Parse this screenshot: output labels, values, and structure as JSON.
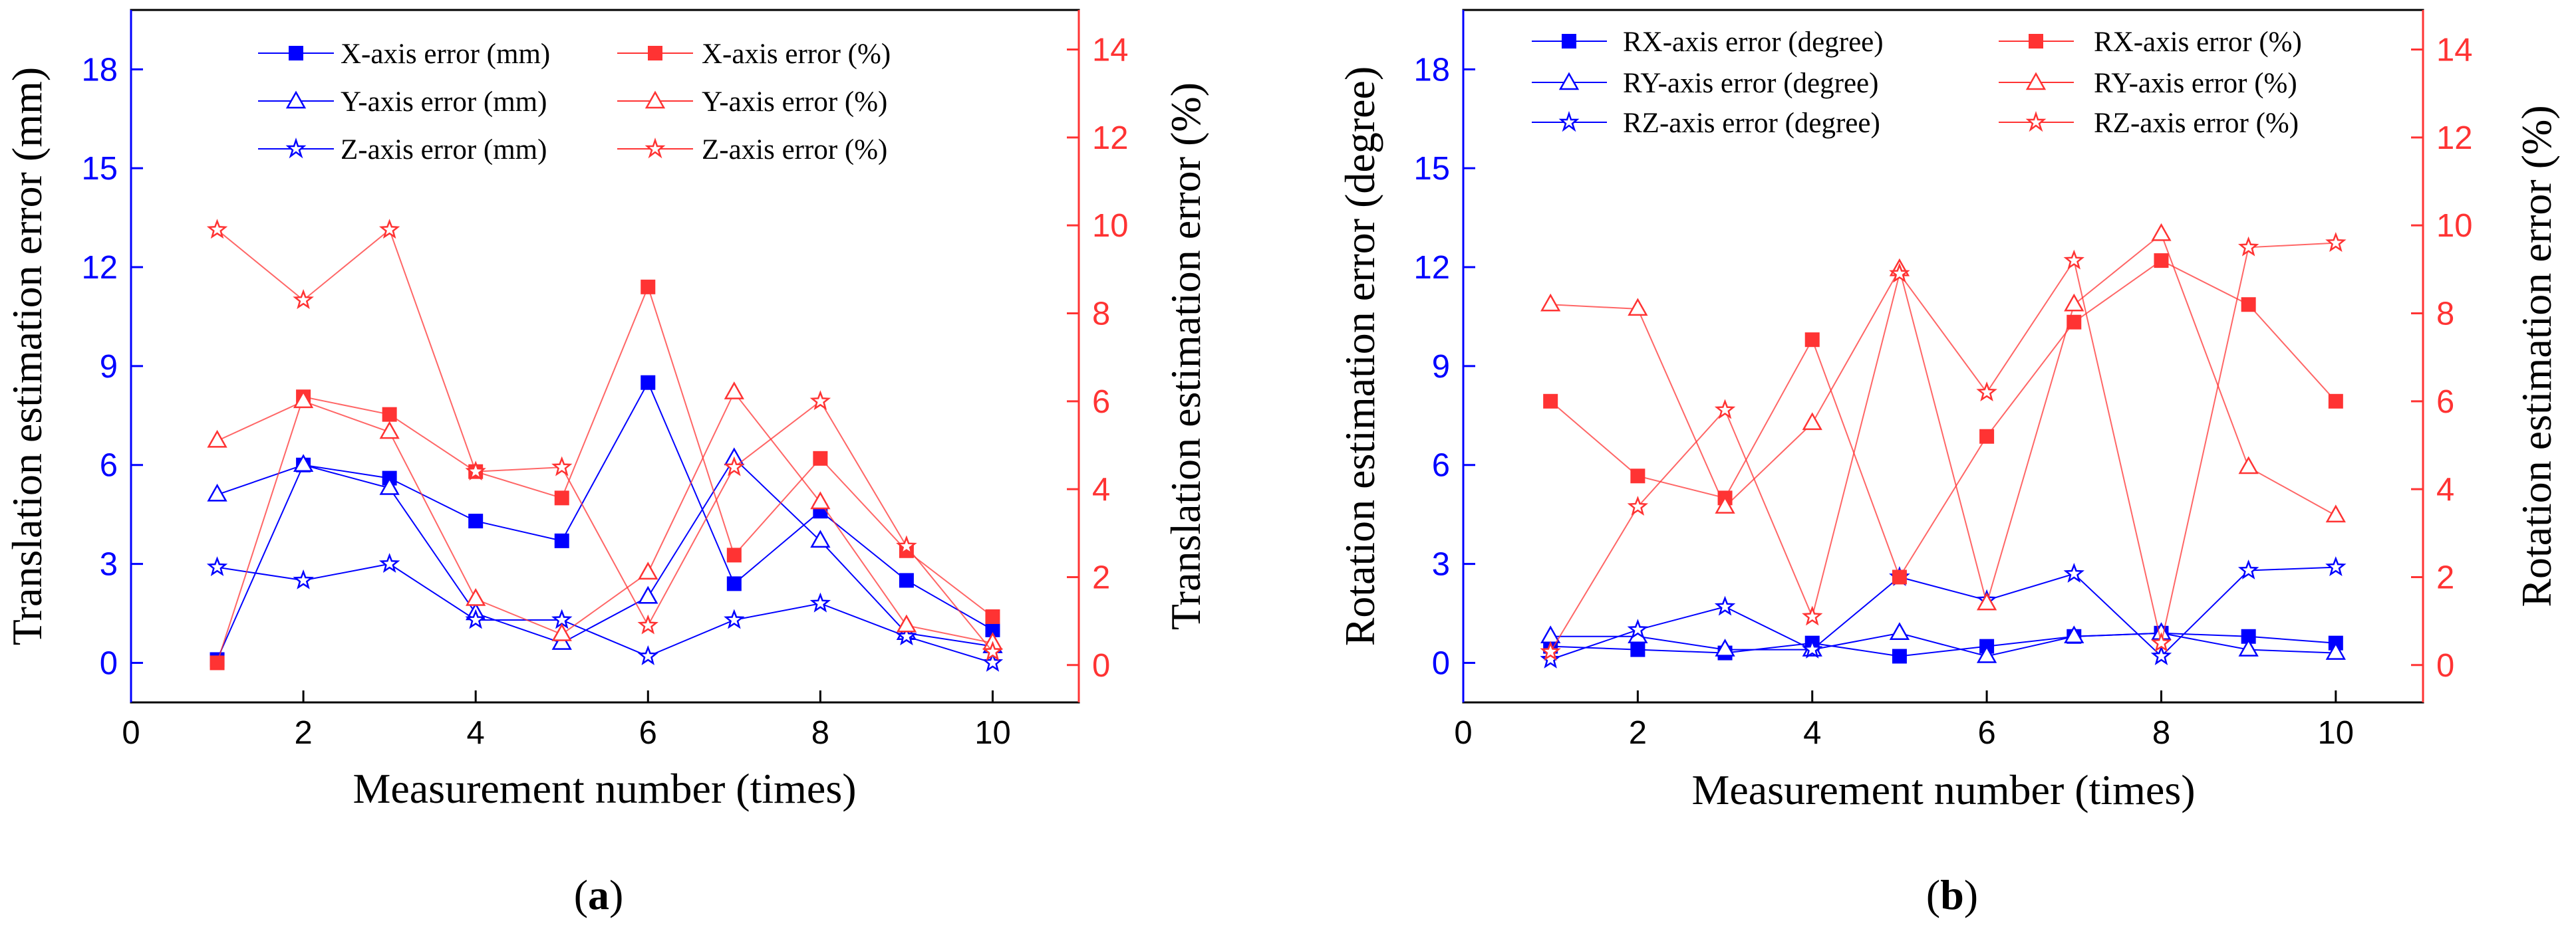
{
  "colors": {
    "left_axis": "#0000ff",
    "right_axis": "#ff3333",
    "frame": "#000000"
  },
  "chart_data": [
    {
      "type": "line",
      "panel_label_open": "(",
      "panel_label_letter": "a",
      "panel_label_close": ")",
      "xlabel": "Measurement number (times)",
      "ylabel_left": "Translation estimation error (mm)",
      "ylabel_right": "Translation estimation error (%)",
      "xlim": [
        0,
        11
      ],
      "ylim_left": [
        -1.2,
        19.8
      ],
      "ylim_right": [
        -0.85,
        14.9
      ],
      "x_ticks": [
        0,
        2,
        4,
        6,
        8,
        10
      ],
      "y_left_ticks": [
        0,
        3,
        6,
        9,
        12,
        15,
        18
      ],
      "y_right_ticks": [
        0,
        2,
        4,
        6,
        8,
        10,
        12,
        14
      ],
      "x": [
        1,
        2,
        3,
        4,
        5,
        6,
        7,
        8,
        9,
        10
      ],
      "series": [
        {
          "name": "X-axis error (mm)",
          "axis": "left",
          "marker": "square-filled",
          "values": [
            0.1,
            6.0,
            5.6,
            4.3,
            3.7,
            8.5,
            2.4,
            4.6,
            2.5,
            1.0
          ]
        },
        {
          "name": "Y-axis error (mm)",
          "axis": "left",
          "marker": "triangle-open",
          "values": [
            5.1,
            6.0,
            5.3,
            1.5,
            0.6,
            2.0,
            6.2,
            3.7,
            0.9,
            0.5
          ]
        },
        {
          "name": "Z-axis error (mm)",
          "axis": "left",
          "marker": "star",
          "values": [
            2.9,
            2.5,
            3.0,
            1.3,
            1.3,
            0.2,
            1.3,
            1.8,
            0.8,
            0.0
          ]
        },
        {
          "name": "X-axis error (%)",
          "axis": "right",
          "marker": "square-filled",
          "values": [
            0.05,
            6.1,
            5.7,
            4.4,
            3.8,
            8.6,
            2.5,
            4.7,
            2.6,
            1.1
          ]
        },
        {
          "name": "Y-axis error (%)",
          "axis": "right",
          "marker": "triangle-open",
          "values": [
            5.1,
            6.0,
            5.3,
            1.5,
            0.7,
            2.1,
            6.2,
            3.7,
            0.9,
            0.5
          ]
        },
        {
          "name": "Z-axis error (%)",
          "axis": "right",
          "marker": "star",
          "values": [
            9.9,
            8.3,
            9.9,
            4.4,
            4.5,
            0.9,
            4.5,
            6.0,
            2.7,
            0.3
          ]
        }
      ]
    },
    {
      "type": "line",
      "panel_label_open": "(",
      "panel_label_letter": "b",
      "panel_label_close": ")",
      "xlabel": "Measurement number (times)",
      "ylabel_left": "Rotation estimation error (degree)",
      "ylabel_right": "Rotation estimation error (%)",
      "xlim": [
        0,
        11
      ],
      "ylim_left": [
        -1.2,
        19.8
      ],
      "ylim_right": [
        -0.85,
        14.9
      ],
      "x_ticks": [
        0,
        2,
        4,
        6,
        8,
        10
      ],
      "y_left_ticks": [
        0,
        3,
        6,
        9,
        12,
        15,
        18
      ],
      "y_right_ticks": [
        0,
        2,
        4,
        6,
        8,
        10,
        12,
        14
      ],
      "x": [
        1,
        2,
        3,
        4,
        5,
        6,
        7,
        8,
        9,
        10
      ],
      "series": [
        {
          "name": "RX-axis error (degree)",
          "axis": "left",
          "marker": "square-filled",
          "values": [
            0.5,
            0.4,
            0.3,
            0.6,
            0.2,
            0.5,
            0.8,
            0.9,
            0.8,
            0.6
          ]
        },
        {
          "name": "RY-axis error (degree)",
          "axis": "left",
          "marker": "triangle-open",
          "values": [
            0.8,
            0.8,
            0.4,
            0.4,
            0.9,
            0.2,
            0.8,
            0.9,
            0.4,
            0.3
          ]
        },
        {
          "name": "RZ-axis error (degree)",
          "axis": "left",
          "marker": "star",
          "values": [
            0.1,
            1.0,
            1.7,
            0.4,
            2.6,
            1.9,
            2.7,
            0.2,
            2.8,
            2.9
          ]
        },
        {
          "name": "RX-axis error (%)",
          "axis": "right",
          "marker": "square-filled",
          "values": [
            6.0,
            4.3,
            3.8,
            7.4,
            2.0,
            5.2,
            7.8,
            9.2,
            8.2,
            6.0
          ]
        },
        {
          "name": "RY-axis error (%)",
          "axis": "right",
          "marker": "triangle-open",
          "values": [
            8.2,
            8.1,
            3.6,
            5.5,
            9.0,
            1.4,
            8.2,
            9.8,
            4.5,
            3.4
          ]
        },
        {
          "name": "RZ-axis error (%)",
          "axis": "right",
          "marker": "star",
          "values": [
            0.3,
            3.6,
            5.8,
            1.1,
            8.9,
            6.2,
            9.2,
            0.5,
            9.5,
            9.6
          ]
        }
      ]
    }
  ]
}
